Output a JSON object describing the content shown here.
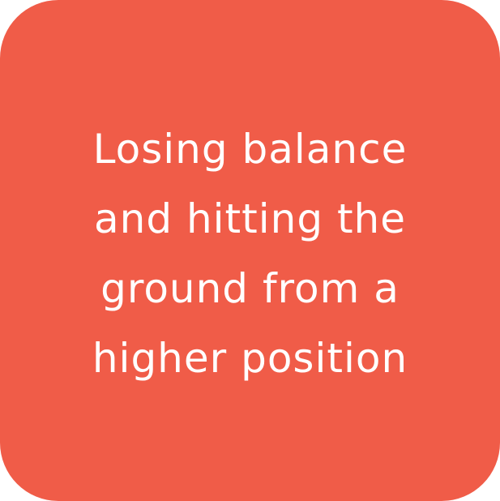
{
  "card": {
    "background_color": "#f05c48",
    "text_color": "#ffffff",
    "lines": [
      "Losing balance",
      "and hitting the",
      "ground from a",
      "higher position"
    ]
  }
}
